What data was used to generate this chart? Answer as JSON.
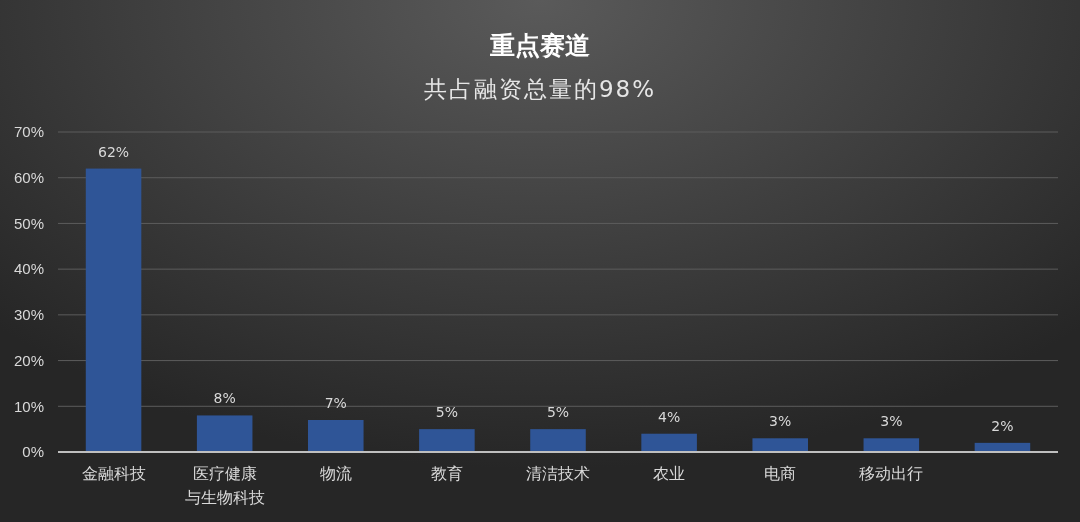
{
  "chart_data": {
    "type": "bar",
    "title": "重点赛道",
    "subtitle": "共占融资总量的98%",
    "categories": [
      "金融科技",
      "医疗健康与生物科技",
      "物流",
      "教育",
      "清洁技术",
      "农业",
      "电商",
      "移动出行",
      null
    ],
    "values": [
      62,
      8,
      7,
      5,
      5,
      4,
      3,
      3,
      2
    ],
    "value_labels": [
      "62%",
      "8%",
      "7%",
      "5%",
      "5%",
      "4%",
      "3%",
      "3%",
      "2%"
    ],
    "color": "#2f5597",
    "ylim": [
      0,
      70
    ],
    "yticks": [
      {
        "value": 0,
        "label": "0%"
      },
      {
        "value": 10,
        "label": "10%"
      },
      {
        "value": 20,
        "label": "20%"
      },
      {
        "value": 30,
        "label": "30%"
      },
      {
        "value": 40,
        "label": "40%"
      },
      {
        "value": 50,
        "label": "50%"
      },
      {
        "value": 60,
        "label": "60%"
      },
      {
        "value": 70,
        "label": "70%"
      }
    ],
    "grid": "y"
  }
}
